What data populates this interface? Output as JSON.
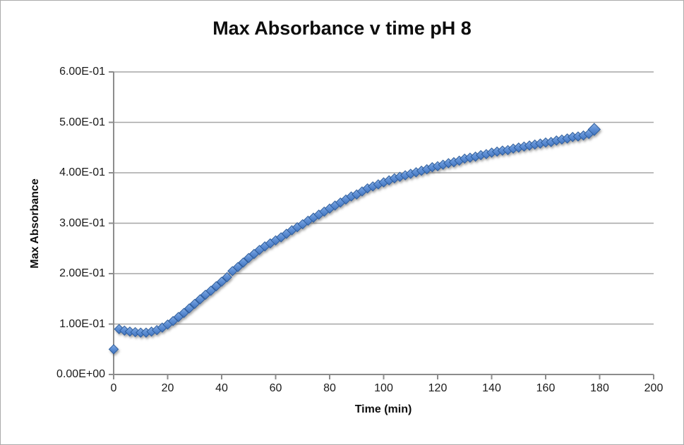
{
  "figure": {
    "background_color": "#ffffff",
    "border_color": "#ababab",
    "gridline_color": "#a6a6a6",
    "axis_color": "#8c8c8c"
  },
  "chart_data": {
    "type": "scatter",
    "title": "Max Absorbance v time pH 8",
    "xlabel": "Time (min)",
    "ylabel": "Max Absorbance",
    "xlim": [
      0,
      200
    ],
    "ylim": [
      0,
      0.6
    ],
    "x_tick_labels": [
      "0",
      "20",
      "40",
      "60",
      "80",
      "100",
      "120",
      "140",
      "160",
      "180",
      "200"
    ],
    "y_tick_labels": [
      "0.00E+00",
      "1.00E-01",
      "2.00E-01",
      "3.00E-01",
      "4.00E-01",
      "5.00E-01",
      "6.00E-01"
    ],
    "grid": "horizontal",
    "legend": "none",
    "marker": "diamond",
    "marker_fill_top": "#8db1e3",
    "marker_fill_mid": "#5e8fd5",
    "marker_fill_bottom": "#4374bd",
    "marker_border_color": "#2f5e9e",
    "series": [
      {
        "name": "Max Absorbance",
        "x": [
          0,
          2,
          4,
          6,
          8,
          10,
          12,
          14,
          16,
          18,
          20,
          22,
          24,
          26,
          28,
          30,
          32,
          34,
          36,
          38,
          40,
          42,
          44,
          46,
          48,
          50,
          52,
          54,
          56,
          58,
          60,
          62,
          64,
          66,
          68,
          70,
          72,
          74,
          76,
          78,
          80,
          82,
          84,
          86,
          88,
          90,
          92,
          94,
          96,
          98,
          100,
          102,
          104,
          106,
          108,
          110,
          112,
          114,
          116,
          118,
          120,
          122,
          124,
          126,
          128,
          130,
          132,
          134,
          136,
          138,
          140,
          142,
          144,
          146,
          148,
          150,
          152,
          154,
          156,
          158,
          160,
          162,
          164,
          166,
          168,
          170,
          172,
          174,
          176,
          178
        ],
        "y": [
          0.05,
          0.09,
          0.087,
          0.085,
          0.084,
          0.083,
          0.083,
          0.085,
          0.088,
          0.093,
          0.099,
          0.106,
          0.114,
          0.122,
          0.131,
          0.14,
          0.149,
          0.158,
          0.166,
          0.175,
          0.184,
          0.193,
          0.205,
          0.213,
          0.222,
          0.231,
          0.239,
          0.247,
          0.254,
          0.26,
          0.266,
          0.272,
          0.279,
          0.286,
          0.292,
          0.298,
          0.305,
          0.311,
          0.317,
          0.323,
          0.329,
          0.335,
          0.341,
          0.347,
          0.353,
          0.357,
          0.363,
          0.369,
          0.373,
          0.377,
          0.381,
          0.385,
          0.389,
          0.392,
          0.395,
          0.398,
          0.401,
          0.404,
          0.407,
          0.411,
          0.413,
          0.416,
          0.419,
          0.421,
          0.424,
          0.428,
          0.43,
          0.432,
          0.435,
          0.437,
          0.44,
          0.442,
          0.444,
          0.445,
          0.448,
          0.45,
          0.452,
          0.454,
          0.456,
          0.458,
          0.46,
          0.461,
          0.464,
          0.466,
          0.468,
          0.471,
          0.472,
          0.474,
          0.477,
          0.486
        ]
      }
    ]
  }
}
